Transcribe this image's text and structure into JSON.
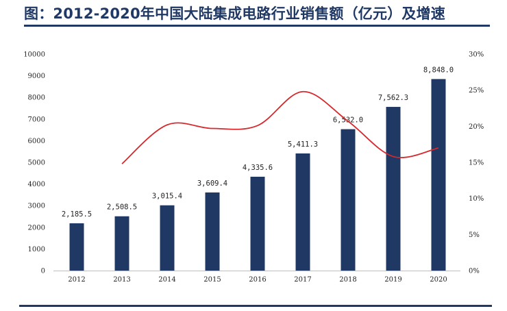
{
  "title": "图：2012-2020年中国大陆集成电路行业销售额（亿元）及增速",
  "colors": {
    "title": "#1f3864",
    "bar": "#1f3864",
    "line": "#d6292c",
    "rule": "#1f3864"
  },
  "chart_data": {
    "type": "bar",
    "categories": [
      "2012",
      "2013",
      "2014",
      "2015",
      "2016",
      "2017",
      "2018",
      "2019",
      "2020"
    ],
    "series": [
      {
        "values": [
          2185.5,
          2508.5,
          3015.4,
          3609.4,
          4335.6,
          5411.3,
          6532.0,
          7562.3,
          8848.0
        ],
        "labels": [
          "2,185.5",
          "2,508.5",
          "3,015.4",
          "3,609.4",
          "4,335.6",
          "5,411.3",
          "6,532.0",
          "7,562.3",
          "8,848.0"
        ],
        "axis": "left",
        "mark": "bar"
      },
      {
        "values": [
          null,
          14.8,
          20.2,
          19.7,
          20.1,
          24.8,
          20.7,
          15.8,
          17.0
        ],
        "axis": "right",
        "mark": "line",
        "smooth": true
      }
    ],
    "ylim_left": [
      0,
      10000
    ],
    "yticks_left": [
      "0",
      "1000",
      "2000",
      "3000",
      "4000",
      "5000",
      "6000",
      "7000",
      "8000",
      "9000",
      "10000"
    ],
    "ylim_right": [
      0,
      30
    ],
    "yticks_right": [
      "0%",
      "5%",
      "10%",
      "15%",
      "20%",
      "25%",
      "30%"
    ],
    "grid": false,
    "legend": "none"
  }
}
